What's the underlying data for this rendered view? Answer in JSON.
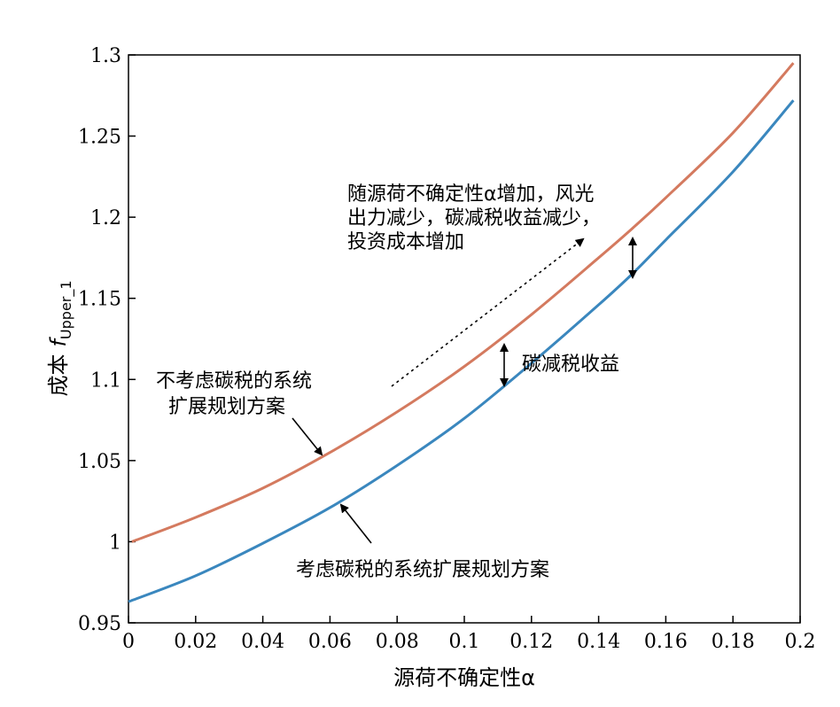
{
  "chart_data": {
    "type": "line",
    "title": "",
    "xlabel": "源荷不确定性α",
    "ylabel_prefix": "成本",
    "ylabel_symbol": "f",
    "ylabel_subscript": "Upper_1",
    "xlim": [
      0,
      0.2
    ],
    "ylim": [
      0.95,
      1.3
    ],
    "xticks": [
      "0",
      "0.02",
      "0.04",
      "0.06",
      "0.08",
      "0.1",
      "0.12",
      "0.14",
      "0.16",
      "0.18",
      "0.2"
    ],
    "yticks": [
      "0.95",
      "1",
      "1.05",
      "1.1",
      "1.15",
      "1.2",
      "1.25",
      "1.3"
    ],
    "grid": false,
    "series": [
      {
        "color": "#d47a5f",
        "x": [
          0.001,
          0.02,
          0.04,
          0.06,
          0.08,
          0.1,
          0.12,
          0.14,
          0.15,
          0.16,
          0.18,
          0.198
        ],
        "y": [
          1.0,
          1.015,
          1.033,
          1.055,
          1.08,
          1.108,
          1.14,
          1.175,
          1.193,
          1.212,
          1.252,
          1.295
        ]
      },
      {
        "color": "#3a87be",
        "x": [
          0.0,
          0.02,
          0.04,
          0.06,
          0.08,
          0.1,
          0.12,
          0.14,
          0.15,
          0.16,
          0.18,
          0.198
        ],
        "y": [
          0.963,
          0.979,
          0.999,
          1.021,
          1.047,
          1.076,
          1.11,
          1.146,
          1.165,
          1.186,
          1.228,
          1.272
        ]
      }
    ],
    "annotations": {
      "upper_label_line1": "不考虑碳税的系统",
      "upper_label_line2": "扩展规划方案",
      "lower_label": "考虑碳税的系统扩展规划方案",
      "gap_label": "碳减税收益",
      "trend_line1": "随源荷不确定性α增加，风光",
      "trend_line2": "出力减少，碳减税收益减少，",
      "trend_line3": "投资成本增加"
    }
  }
}
